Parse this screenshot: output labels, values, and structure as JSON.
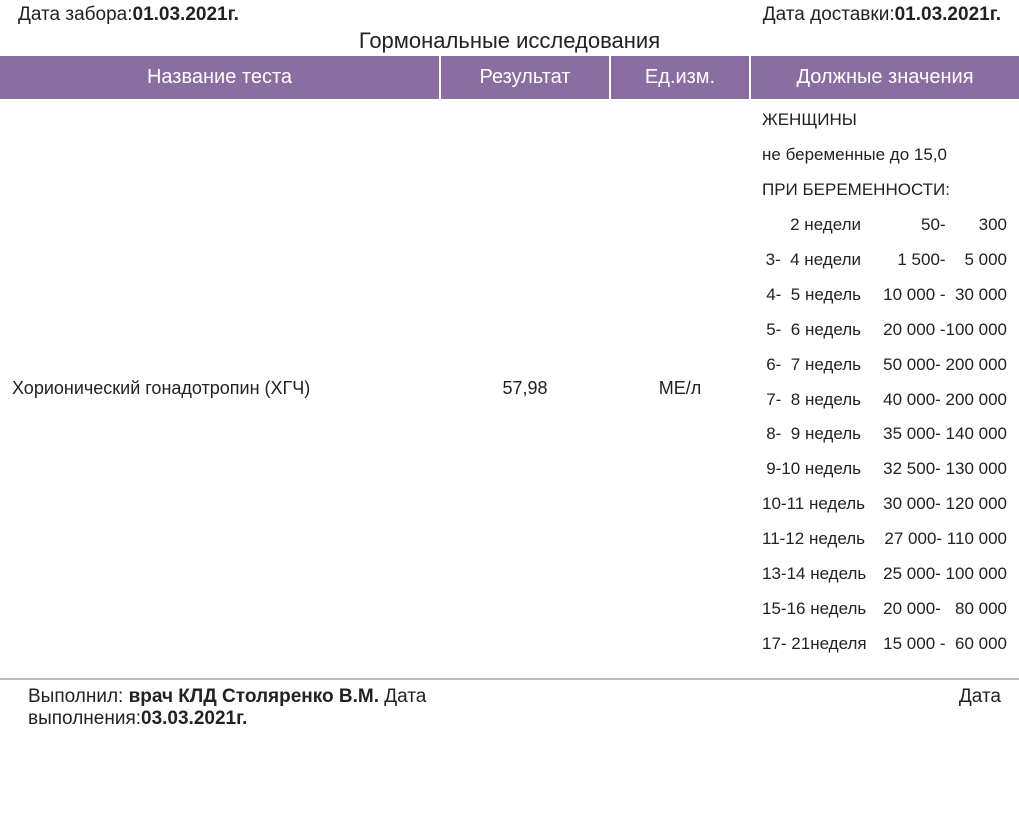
{
  "top": {
    "collection_label": "Дата забора:",
    "collection_date": "01.03.2021г.",
    "delivery_label": "Дата доставки:",
    "delivery_date": "01.03.2021г."
  },
  "section_title": "Гормональные исследования",
  "columns": {
    "name": "Название теста",
    "result": "Результат",
    "unit": "Ед.изм.",
    "ref": "Должные значения"
  },
  "row": {
    "test_name": "Хорионический гонадотропин (ХГЧ)",
    "result": "57,98",
    "unit": "МЕ/л",
    "ref": {
      "women_header": "ЖЕНЩИНЫ",
      "non_pregnant": "не беременные до 15,0",
      "pregnancy_header": "ПРИ БЕРЕМЕННОСТИ:",
      "pregnancy_rows": [
        {
          "weeks": "2 недели",
          "range": "50-       300"
        },
        {
          "weeks": "3-  4 недели",
          "range": "1 500-    5 000"
        },
        {
          "weeks": "4-  5 недель",
          "range": "10 000 -  30 000"
        },
        {
          "weeks": "5-  6 недель",
          "range": "20 000 -100 000"
        },
        {
          "weeks": "6-  7 недель",
          "range": "50 000- 200 000"
        },
        {
          "weeks": "7-  8 недель",
          "range": "40 000- 200 000"
        },
        {
          "weeks": "8-  9 недель",
          "range": "35 000- 140 000"
        },
        {
          "weeks": "9-10 недель",
          "range": "32 500- 130 000"
        },
        {
          "weeks": "10-11 недель",
          "range": "30 000- 120 000"
        },
        {
          "weeks": "11-12 недель",
          "range": "27 000- 110 000"
        },
        {
          "weeks": "13-14 недель",
          "range": "25 000- 100 000"
        },
        {
          "weeks": "15-16 недель",
          "range": "20 000-   80 000"
        },
        {
          "weeks": "17- 21неделя",
          "range": "15 000 -  60 000"
        }
      ]
    }
  },
  "footer": {
    "performed_label": "Выполнил: ",
    "performed_by": "врач КЛД Столяренко В.М.",
    "performed_date_label": "Дата выполнения:",
    "performed_date": "03.03.2021г.",
    "right_label": "Дата"
  },
  "style": {
    "header_bg": "#8a6ea1",
    "header_fg": "#ffffff",
    "text_color": "#222222",
    "border_color": "#bdbdbd"
  }
}
